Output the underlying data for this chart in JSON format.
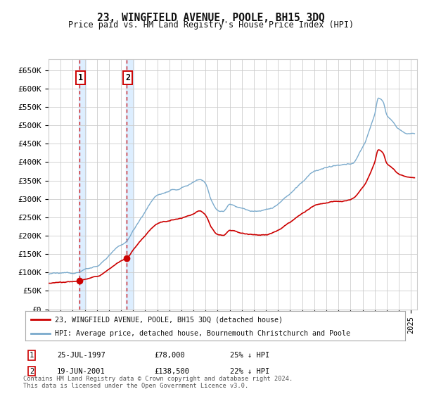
{
  "title": "23, WINGFIELD AVENUE, POOLE, BH15 3DQ",
  "subtitle": "Price paid vs. HM Land Registry's House Price Index (HPI)",
  "ylabel_ticks": [
    "£0",
    "£50K",
    "£100K",
    "£150K",
    "£200K",
    "£250K",
    "£300K",
    "£350K",
    "£400K",
    "£450K",
    "£500K",
    "£550K",
    "£600K",
    "£650K"
  ],
  "ytick_values": [
    0,
    50000,
    100000,
    150000,
    200000,
    250000,
    300000,
    350000,
    400000,
    450000,
    500000,
    550000,
    600000,
    650000
  ],
  "xlim_start": 1995.0,
  "xlim_end": 2025.5,
  "ylim_min": 0,
  "ylim_max": 680000,
  "sale1_date": 1997.56,
  "sale1_price": 78000,
  "sale2_date": 2001.47,
  "sale2_price": 138500,
  "legend_line1": "23, WINGFIELD AVENUE, POOLE, BH15 3DQ (detached house)",
  "legend_line2": "HPI: Average price, detached house, Bournemouth Christchurch and Poole",
  "table_row1_num": "1",
  "table_row1_date": "25-JUL-1997",
  "table_row1_price": "£78,000",
  "table_row1_hpi": "25% ↓ HPI",
  "table_row2_num": "2",
  "table_row2_date": "19-JUN-2001",
  "table_row2_price": "£138,500",
  "table_row2_hpi": "22% ↓ HPI",
  "footnote": "Contains HM Land Registry data © Crown copyright and database right 2024.\nThis data is licensed under the Open Government Licence v3.0.",
  "line_color_red": "#cc0000",
  "line_color_blue": "#7aaacc",
  "bg_color": "#ffffff",
  "grid_color": "#cccccc",
  "highlight_bg": "#ddeeff"
}
